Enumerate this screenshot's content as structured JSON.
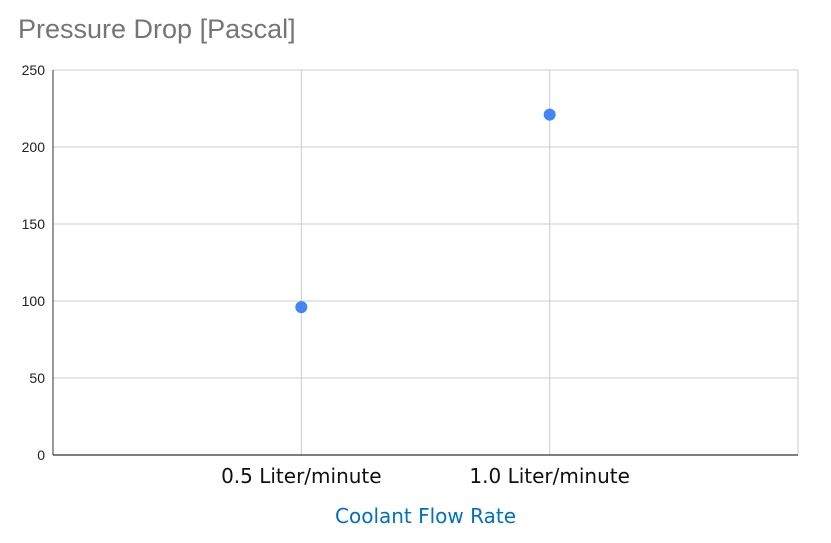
{
  "chart_data": {
    "type": "scatter",
    "title": "Pressure Drop [Pascal]",
    "xlabel": "Coolant Flow Rate",
    "ylabel": "",
    "categories": [
      "0.5 Liter/minute",
      "1.0 Liter/minute"
    ],
    "series": [
      {
        "name": "Pressure Drop [Pascal]",
        "values": [
          96,
          221
        ]
      }
    ],
    "ylim": [
      0,
      250
    ],
    "yticks": [
      0,
      50,
      100,
      150,
      200,
      250
    ],
    "xlim": [
      0,
      3
    ],
    "x_positions": [
      1,
      2
    ],
    "grid": true,
    "legend": "none",
    "colors": {
      "point": "#4285f4",
      "grid": "#cccccc",
      "axis": "#333333",
      "title": "#757575",
      "xlabel": "#0070c0"
    }
  }
}
